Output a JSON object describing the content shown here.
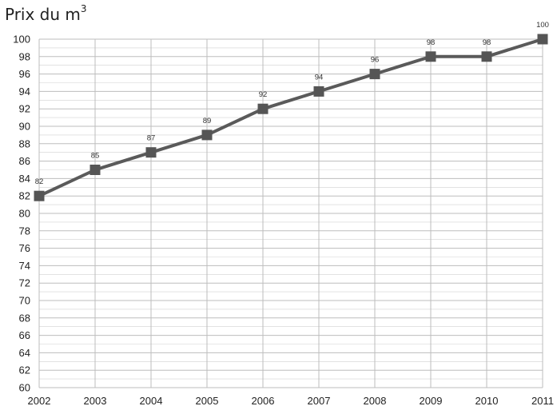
{
  "chart_data": {
    "type": "line",
    "title": "Prix du m",
    "title_sup": "3",
    "x": [
      "2002",
      "2003",
      "2004",
      "2005",
      "2006",
      "2007",
      "2008",
      "2009",
      "2010",
      "2011"
    ],
    "series": [
      {
        "values": [
          82,
          85,
          87,
          89,
          92,
          94,
          96,
          98,
          98,
          100
        ]
      }
    ],
    "ylim": [
      60,
      100
    ],
    "ytick_step": 2,
    "y_minor_step": 1,
    "grid": true,
    "data_labels": true,
    "marker": "square",
    "line_color": "#5a5a5a",
    "marker_color": "#555555",
    "grid_color": "#bdbdbd"
  }
}
